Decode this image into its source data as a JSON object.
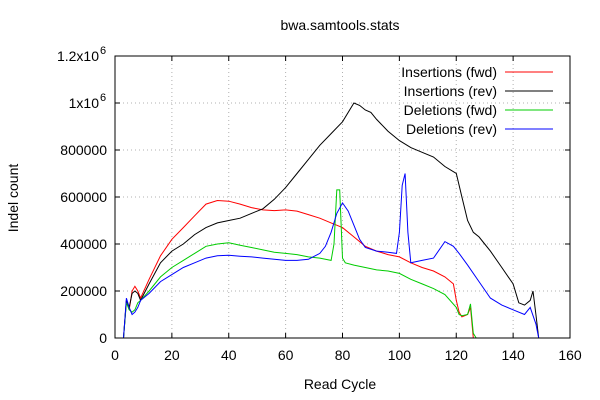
{
  "chart_data": {
    "type": "line",
    "title": "bwa.samtools.stats",
    "xlabel": "Read Cycle",
    "ylabel": "Indel count",
    "xlim": [
      0,
      160
    ],
    "ylim": [
      0,
      1200000
    ],
    "grid": true,
    "legend_position": "top-right",
    "x_ticks": [
      {
        "value": 0,
        "label": "0"
      },
      {
        "value": 20,
        "label": "20"
      },
      {
        "value": 40,
        "label": "40"
      },
      {
        "value": 60,
        "label": "60"
      },
      {
        "value": 80,
        "label": "80"
      },
      {
        "value": 100,
        "label": "100"
      },
      {
        "value": 120,
        "label": "120"
      },
      {
        "value": 140,
        "label": "140"
      },
      {
        "value": 160,
        "label": "160"
      }
    ],
    "y_ticks": [
      {
        "value": 0,
        "label": "0",
        "sup": ""
      },
      {
        "value": 200000,
        "label": "200000",
        "sup": ""
      },
      {
        "value": 400000,
        "label": "400000",
        "sup": ""
      },
      {
        "value": 600000,
        "label": "600000",
        "sup": ""
      },
      {
        "value": 800000,
        "label": "800000",
        "sup": ""
      },
      {
        "value": 1000000,
        "label": "1x10",
        "sup": "6"
      },
      {
        "value": 1200000,
        "label": "1.2x10",
        "sup": "6"
      }
    ],
    "series": [
      {
        "name": "Insertions (fwd)",
        "color": "#ff0000",
        "points": [
          [
            3,
            0
          ],
          [
            4,
            160000
          ],
          [
            5,
            120000
          ],
          [
            6,
            200000
          ],
          [
            7,
            220000
          ],
          [
            8,
            200000
          ],
          [
            9,
            170000
          ],
          [
            12,
            250000
          ],
          [
            16,
            350000
          ],
          [
            20,
            420000
          ],
          [
            24,
            470000
          ],
          [
            28,
            520000
          ],
          [
            32,
            570000
          ],
          [
            36,
            585000
          ],
          [
            40,
            582000
          ],
          [
            44,
            570000
          ],
          [
            48,
            555000
          ],
          [
            52,
            545000
          ],
          [
            56,
            542000
          ],
          [
            60,
            545000
          ],
          [
            64,
            540000
          ],
          [
            68,
            525000
          ],
          [
            72,
            510000
          ],
          [
            76,
            490000
          ],
          [
            80,
            470000
          ],
          [
            84,
            430000
          ],
          [
            88,
            390000
          ],
          [
            92,
            370000
          ],
          [
            96,
            355000
          ],
          [
            100,
            345000
          ],
          [
            104,
            320000
          ],
          [
            108,
            300000
          ],
          [
            112,
            285000
          ],
          [
            116,
            260000
          ],
          [
            119,
            230000
          ],
          [
            120,
            160000
          ],
          [
            121,
            110000
          ],
          [
            122,
            90000
          ],
          [
            124,
            100000
          ],
          [
            125,
            130000
          ],
          [
            126,
            0
          ]
        ]
      },
      {
        "name": "Insertions (rev)",
        "color": "#000000",
        "points": [
          [
            3,
            0
          ],
          [
            4,
            160000
          ],
          [
            5,
            130000
          ],
          [
            6,
            190000
          ],
          [
            7,
            200000
          ],
          [
            8,
            190000
          ],
          [
            9,
            160000
          ],
          [
            12,
            230000
          ],
          [
            16,
            320000
          ],
          [
            20,
            370000
          ],
          [
            24,
            400000
          ],
          [
            28,
            440000
          ],
          [
            32,
            470000
          ],
          [
            36,
            490000
          ],
          [
            40,
            500000
          ],
          [
            44,
            510000
          ],
          [
            48,
            530000
          ],
          [
            52,
            550000
          ],
          [
            56,
            590000
          ],
          [
            60,
            640000
          ],
          [
            64,
            700000
          ],
          [
            68,
            760000
          ],
          [
            72,
            820000
          ],
          [
            76,
            870000
          ],
          [
            80,
            920000
          ],
          [
            82,
            960000
          ],
          [
            84,
            1000000
          ],
          [
            86,
            990000
          ],
          [
            88,
            970000
          ],
          [
            90,
            960000
          ],
          [
            92,
            930000
          ],
          [
            96,
            880000
          ],
          [
            100,
            840000
          ],
          [
            104,
            810000
          ],
          [
            108,
            790000
          ],
          [
            112,
            770000
          ],
          [
            116,
            730000
          ],
          [
            120,
            700000
          ],
          [
            122,
            600000
          ],
          [
            124,
            500000
          ],
          [
            126,
            450000
          ],
          [
            128,
            430000
          ],
          [
            130,
            400000
          ],
          [
            132,
            370000
          ],
          [
            136,
            300000
          ],
          [
            140,
            230000
          ],
          [
            142,
            150000
          ],
          [
            144,
            140000
          ],
          [
            146,
            160000
          ],
          [
            147,
            200000
          ],
          [
            148,
            100000
          ],
          [
            149,
            0
          ]
        ]
      },
      {
        "name": "Deletions (fwd)",
        "color": "#00cc00",
        "points": [
          [
            3,
            0
          ],
          [
            4,
            150000
          ],
          [
            5,
            120000
          ],
          [
            6,
            110000
          ],
          [
            7,
            120000
          ],
          [
            8,
            150000
          ],
          [
            9,
            160000
          ],
          [
            12,
            200000
          ],
          [
            16,
            260000
          ],
          [
            20,
            300000
          ],
          [
            24,
            330000
          ],
          [
            28,
            360000
          ],
          [
            32,
            390000
          ],
          [
            36,
            400000
          ],
          [
            40,
            405000
          ],
          [
            44,
            395000
          ],
          [
            48,
            385000
          ],
          [
            52,
            375000
          ],
          [
            56,
            365000
          ],
          [
            60,
            360000
          ],
          [
            64,
            355000
          ],
          [
            68,
            345000
          ],
          [
            72,
            340000
          ],
          [
            76,
            330000
          ],
          [
            77,
            400000
          ],
          [
            78,
            630000
          ],
          [
            79,
            630000
          ],
          [
            80,
            340000
          ],
          [
            81,
            320000
          ],
          [
            84,
            310000
          ],
          [
            88,
            300000
          ],
          [
            92,
            290000
          ],
          [
            96,
            285000
          ],
          [
            100,
            275000
          ],
          [
            104,
            250000
          ],
          [
            108,
            230000
          ],
          [
            112,
            210000
          ],
          [
            116,
            185000
          ],
          [
            120,
            130000
          ],
          [
            121,
            100000
          ],
          [
            122,
            95000
          ],
          [
            124,
            100000
          ],
          [
            125,
            145000
          ],
          [
            126,
            20000
          ],
          [
            127,
            0
          ]
        ]
      },
      {
        "name": "Deletions (rev)",
        "color": "#0000ff",
        "points": [
          [
            3,
            0
          ],
          [
            4,
            170000
          ],
          [
            5,
            130000
          ],
          [
            6,
            100000
          ],
          [
            7,
            110000
          ],
          [
            8,
            130000
          ],
          [
            9,
            160000
          ],
          [
            12,
            190000
          ],
          [
            16,
            240000
          ],
          [
            20,
            270000
          ],
          [
            24,
            300000
          ],
          [
            28,
            320000
          ],
          [
            32,
            340000
          ],
          [
            36,
            350000
          ],
          [
            40,
            352000
          ],
          [
            44,
            348000
          ],
          [
            48,
            345000
          ],
          [
            52,
            340000
          ],
          [
            56,
            335000
          ],
          [
            60,
            330000
          ],
          [
            64,
            330000
          ],
          [
            68,
            335000
          ],
          [
            72,
            360000
          ],
          [
            74,
            390000
          ],
          [
            76,
            450000
          ],
          [
            78,
            530000
          ],
          [
            80,
            575000
          ],
          [
            82,
            540000
          ],
          [
            84,
            480000
          ],
          [
            86,
            420000
          ],
          [
            88,
            385000
          ],
          [
            92,
            370000
          ],
          [
            96,
            365000
          ],
          [
            99,
            360000
          ],
          [
            100,
            450000
          ],
          [
            101,
            650000
          ],
          [
            102,
            700000
          ],
          [
            103,
            450000
          ],
          [
            104,
            320000
          ],
          [
            108,
            330000
          ],
          [
            112,
            340000
          ],
          [
            116,
            410000
          ],
          [
            119,
            390000
          ],
          [
            121,
            360000
          ],
          [
            124,
            310000
          ],
          [
            128,
            240000
          ],
          [
            132,
            170000
          ],
          [
            136,
            140000
          ],
          [
            140,
            120000
          ],
          [
            144,
            100000
          ],
          [
            146,
            130000
          ],
          [
            148,
            60000
          ],
          [
            149,
            0
          ]
        ]
      }
    ]
  }
}
